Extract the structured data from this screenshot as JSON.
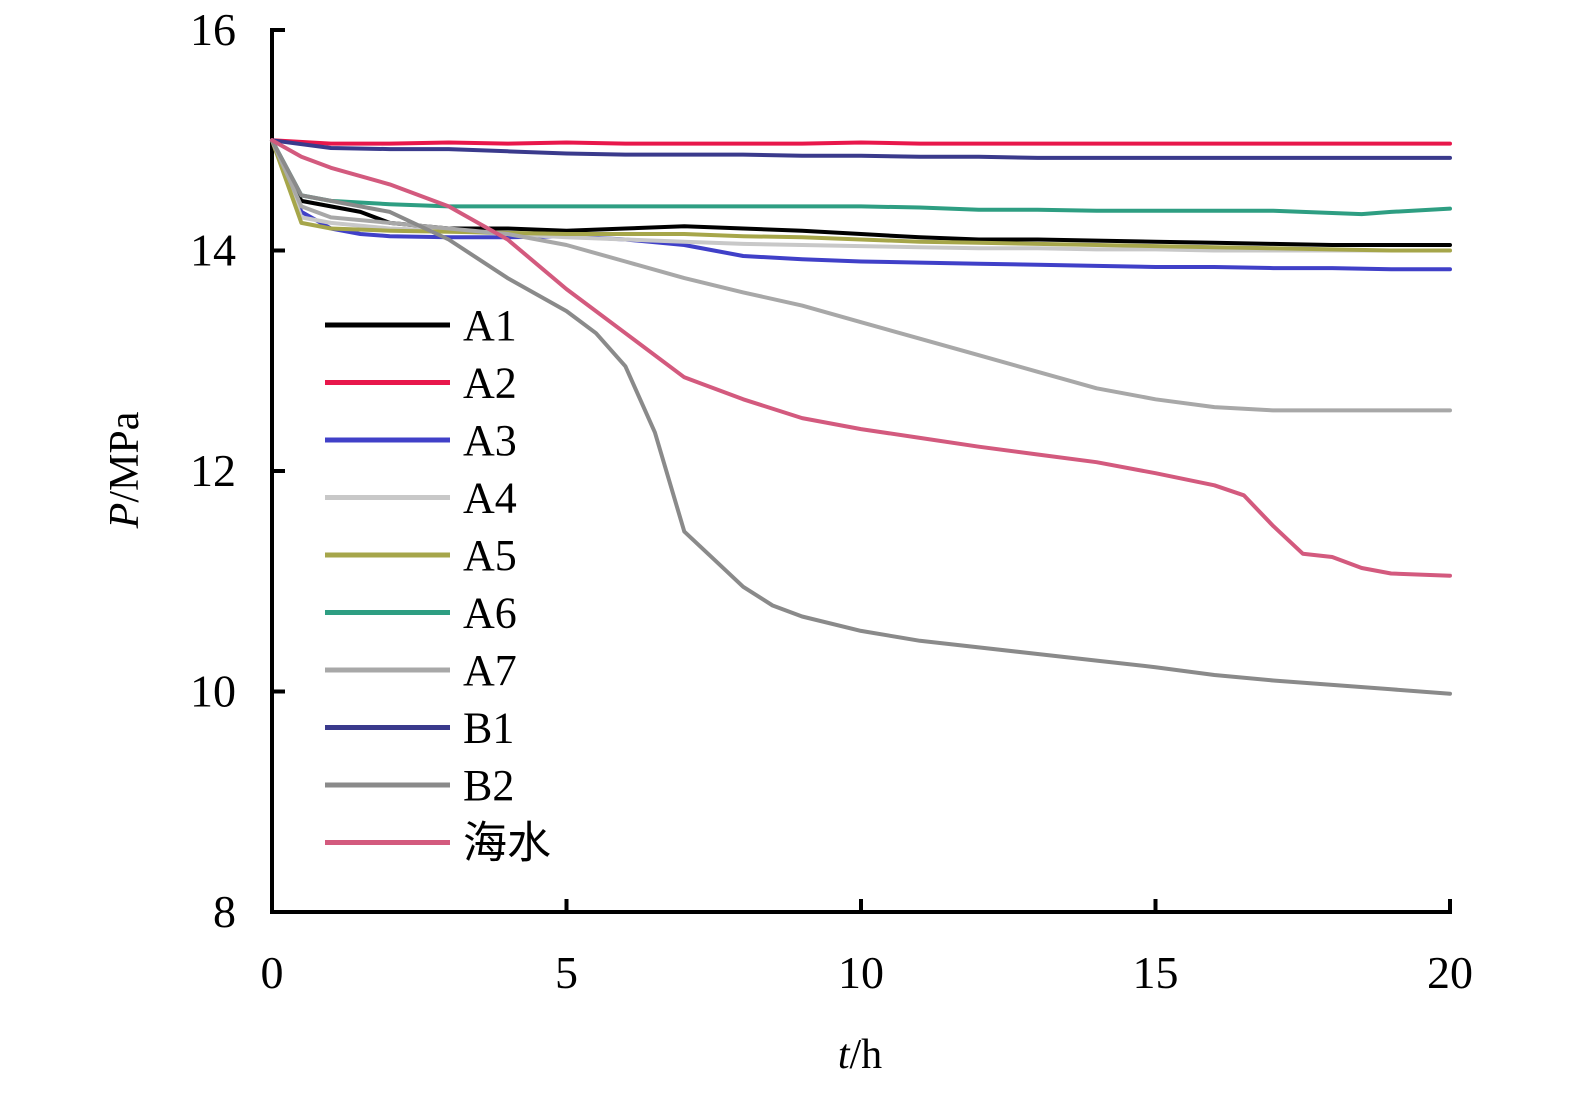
{
  "chart_data": {
    "type": "line",
    "xlabel": "t/h",
    "ylabel": "P/MPa",
    "xlim": [
      0,
      20
    ],
    "ylim": [
      8,
      16
    ],
    "xticks": [
      0,
      5,
      10,
      15,
      20
    ],
    "yticks": [
      8,
      10,
      12,
      14,
      16
    ],
    "grid": false,
    "legend_position": "left",
    "series": [
      {
        "name": "A1",
        "color": "#000000",
        "x": [
          0,
          0.5,
          1,
          1.5,
          2,
          3,
          4,
          5,
          6,
          7,
          8,
          9,
          10,
          11,
          12,
          13,
          14,
          15,
          16,
          17,
          18,
          19,
          20
        ],
        "y": [
          15.0,
          14.45,
          14.4,
          14.35,
          14.25,
          14.2,
          14.2,
          14.18,
          14.2,
          14.22,
          14.2,
          14.18,
          14.15,
          14.12,
          14.1,
          14.1,
          14.09,
          14.08,
          14.07,
          14.06,
          14.05,
          14.05,
          14.05
        ]
      },
      {
        "name": "A2",
        "color": "#e8174b",
        "x": [
          0,
          1,
          2,
          3,
          4,
          5,
          6,
          7,
          8,
          9,
          10,
          11,
          12,
          13,
          14,
          15,
          16,
          17,
          18,
          19,
          20
        ],
        "y": [
          15.0,
          14.97,
          14.97,
          14.98,
          14.97,
          14.98,
          14.97,
          14.97,
          14.97,
          14.97,
          14.98,
          14.97,
          14.97,
          14.97,
          14.97,
          14.97,
          14.97,
          14.97,
          14.97,
          14.97,
          14.97
        ]
      },
      {
        "name": "A3",
        "color": "#4040c8",
        "x": [
          0,
          0.5,
          1,
          1.5,
          2,
          3,
          4,
          5,
          6,
          7,
          7.5,
          8,
          9,
          10,
          11,
          12,
          13,
          14,
          15,
          16,
          17,
          18,
          19,
          20
        ],
        "y": [
          15.0,
          14.35,
          14.2,
          14.15,
          14.13,
          14.12,
          14.12,
          14.13,
          14.1,
          14.05,
          14.0,
          13.95,
          13.92,
          13.9,
          13.89,
          13.88,
          13.87,
          13.86,
          13.85,
          13.85,
          13.84,
          13.84,
          13.83,
          13.83
        ]
      },
      {
        "name": "A4",
        "color": "#c8c8c8",
        "x": [
          0,
          0.5,
          1,
          2,
          3,
          4,
          5,
          6,
          7,
          8,
          9,
          10,
          11,
          12,
          13,
          14,
          15,
          16,
          17,
          18,
          19,
          20
        ],
        "y": [
          15.0,
          14.3,
          14.25,
          14.2,
          14.18,
          14.15,
          14.12,
          14.1,
          14.08,
          14.06,
          14.05,
          14.04,
          14.03,
          14.02,
          14.02,
          14.01,
          14.01,
          14.0,
          14.0,
          14.0,
          14.0,
          14.0
        ]
      },
      {
        "name": "A5",
        "color": "#a6a64a",
        "x": [
          0,
          0.5,
          1,
          2,
          3,
          4,
          5,
          6,
          7,
          8,
          9,
          10,
          11,
          12,
          13,
          14,
          15,
          16,
          17,
          18,
          19,
          20
        ],
        "y": [
          15.0,
          14.25,
          14.2,
          14.18,
          14.17,
          14.16,
          14.15,
          14.15,
          14.15,
          14.13,
          14.12,
          14.1,
          14.08,
          14.07,
          14.06,
          14.05,
          14.04,
          14.03,
          14.02,
          14.01,
          14.0,
          14.0
        ]
      },
      {
        "name": "A6",
        "color": "#2e9e82",
        "x": [
          0,
          0.5,
          1,
          2,
          3,
          4,
          5,
          6,
          7,
          8,
          9,
          10,
          11,
          12,
          13,
          14,
          15,
          16,
          17,
          18,
          18.5,
          19,
          20
        ],
        "y": [
          15.0,
          14.5,
          14.45,
          14.42,
          14.4,
          14.4,
          14.4,
          14.4,
          14.4,
          14.4,
          14.4,
          14.4,
          14.39,
          14.37,
          14.37,
          14.36,
          14.36,
          14.36,
          14.36,
          14.34,
          14.33,
          14.35,
          14.38
        ]
      },
      {
        "name": "A7",
        "color": "#a8a8a8",
        "x": [
          0,
          0.5,
          1,
          2,
          3,
          4,
          5,
          6,
          7,
          8,
          9,
          10,
          11,
          12,
          13,
          14,
          15,
          16,
          17,
          18,
          19,
          20
        ],
        "y": [
          15.0,
          14.4,
          14.3,
          14.25,
          14.2,
          14.15,
          14.05,
          13.9,
          13.75,
          13.62,
          13.5,
          13.35,
          13.2,
          13.05,
          12.9,
          12.75,
          12.65,
          12.58,
          12.55,
          12.55,
          12.55,
          12.55
        ]
      },
      {
        "name": "B1",
        "color": "#3a3a8c",
        "x": [
          0,
          1,
          2,
          3,
          4,
          5,
          6,
          7,
          8,
          9,
          10,
          11,
          12,
          13,
          14,
          15,
          16,
          17,
          18,
          19,
          20
        ],
        "y": [
          15.0,
          14.93,
          14.92,
          14.92,
          14.9,
          14.88,
          14.87,
          14.87,
          14.87,
          14.86,
          14.86,
          14.85,
          14.85,
          14.84,
          14.84,
          14.84,
          14.84,
          14.84,
          14.84,
          14.84,
          14.84
        ]
      },
      {
        "name": "B2",
        "color": "#8a8a8a",
        "x": [
          0,
          0.5,
          1,
          2,
          3,
          4,
          5,
          5.5,
          6,
          6.5,
          7,
          7.5,
          8,
          8.5,
          9,
          10,
          11,
          12,
          13,
          14,
          15,
          16,
          17,
          18,
          19,
          20
        ],
        "y": [
          15.0,
          14.5,
          14.45,
          14.35,
          14.1,
          13.75,
          13.45,
          13.25,
          12.95,
          12.35,
          11.45,
          11.2,
          10.95,
          10.78,
          10.68,
          10.55,
          10.46,
          10.4,
          10.34,
          10.28,
          10.22,
          10.15,
          10.1,
          10.06,
          10.02,
          9.98
        ]
      },
      {
        "name": "海水",
        "color": "#d35a7e",
        "x": [
          0,
          0.5,
          1,
          2,
          3,
          4,
          5,
          6,
          7,
          8,
          9,
          10,
          11,
          12,
          13,
          14,
          15,
          16,
          16.5,
          17,
          17.5,
          18,
          18.5,
          19,
          20
        ],
        "y": [
          15.0,
          14.85,
          14.75,
          14.6,
          14.4,
          14.1,
          13.65,
          13.25,
          12.85,
          12.65,
          12.48,
          12.38,
          12.3,
          12.22,
          12.15,
          12.08,
          11.98,
          11.87,
          11.78,
          11.5,
          11.25,
          11.22,
          11.12,
          11.07,
          11.05
        ]
      }
    ]
  }
}
